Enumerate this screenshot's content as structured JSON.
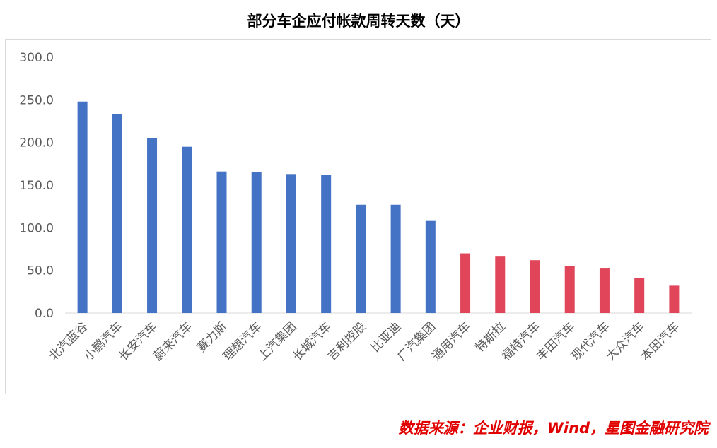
{
  "chart_data": {
    "type": "bar",
    "title": "部分车企应付帐款周转天数（天）",
    "categories": [
      "北汽蓝谷",
      "小鹏汽车",
      "长安汽车",
      "蔚来汽车",
      "赛力斯",
      "理想汽车",
      "上汽集团",
      "长城汽车",
      "吉利控股",
      "比亚迪",
      "广汽集团",
      "通用汽车",
      "特斯拉",
      "福特汽车",
      "丰田汽车",
      "现代汽车",
      "大众汽车",
      "本田汽车"
    ],
    "values": [
      248,
      233,
      205,
      195,
      166,
      165,
      163,
      162,
      127,
      127,
      108,
      70,
      67,
      62,
      55,
      53,
      41,
      32
    ],
    "series_colors": {
      "blue": "#4472c4",
      "red": "#e0455a"
    },
    "red_from_category": "通用汽车",
    "ylim": [
      0,
      300
    ],
    "yticks": [
      "0.0",
      "50.0",
      "100.0",
      "150.0",
      "200.0",
      "250.0",
      "300.0"
    ],
    "grid": false,
    "legend": "none"
  },
  "source_text": "数据来源：企业财报，Wind，星图金融研究院"
}
